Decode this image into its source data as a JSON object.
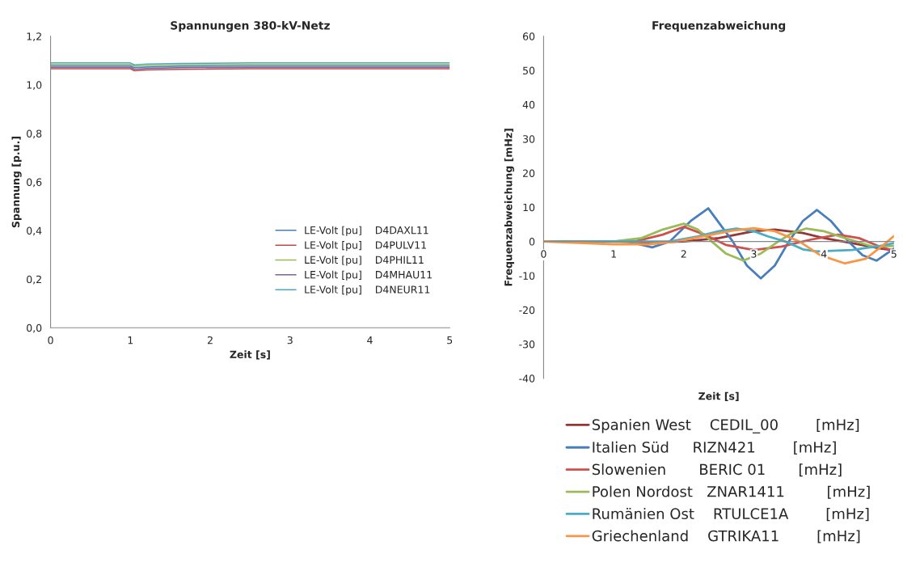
{
  "chart_data": [
    {
      "type": "line",
      "title": "Spannungen 380-kV-Netz",
      "xlabel": "Zeit [s]",
      "ylabel": "Spannung [p.u.]",
      "xlim": [
        0,
        5
      ],
      "xticks": [
        0,
        1,
        2,
        3,
        4,
        5
      ],
      "ylim": [
        0,
        1.2
      ],
      "yticks": [
        {
          "value": 0,
          "label": "0,0"
        },
        {
          "value": 0.2,
          "label": "0,2"
        },
        {
          "value": 0.4,
          "label": "0,4"
        },
        {
          "value": 0.6,
          "label": "0,6"
        },
        {
          "value": 0.8,
          "label": "0,8"
        },
        {
          "value": 1.0,
          "label": "1,0"
        },
        {
          "value": 1.2,
          "label": "1,2"
        }
      ],
      "grid": false,
      "legend": "bottom right",
      "marker": "none",
      "line_style": "solid",
      "x": [
        0,
        1,
        1.05,
        1.2,
        1.6,
        2.5,
        5
      ],
      "series": [
        {
          "name": "LE-Volt [pu]    D4DAXL11",
          "color": "#4a7ebb",
          "values": [
            1.078,
            1.078,
            1.07,
            1.073,
            1.076,
            1.078,
            1.078
          ]
        },
        {
          "name": "LE-Volt [pu]    D4PULV11",
          "color": "#be4b48",
          "values": [
            1.066,
            1.066,
            1.058,
            1.061,
            1.064,
            1.066,
            1.066
          ]
        },
        {
          "name": "LE-Volt [pu]    D4PHIL11",
          "color": "#98b954",
          "values": [
            1.084,
            1.084,
            1.076,
            1.079,
            1.082,
            1.084,
            1.084
          ]
        },
        {
          "name": "LE-Volt [pu]    D4MHAU11",
          "color": "#7d60a0",
          "values": [
            1.072,
            1.072,
            1.064,
            1.067,
            1.07,
            1.072,
            1.072
          ]
        },
        {
          "name": "LE-Volt [pu]    D4NEUR11",
          "color": "#46aac5",
          "values": [
            1.09,
            1.09,
            1.082,
            1.085,
            1.088,
            1.09,
            1.09
          ]
        }
      ]
    },
    {
      "type": "line",
      "title": "Frequenzabweichung",
      "xlabel": "Zeit [s]",
      "ylabel": "Frequenzabweichung [mHz]",
      "xlim": [
        0,
        5
      ],
      "xticks": [
        0,
        1,
        2,
        3,
        4,
        5
      ],
      "ylim": [
        -40,
        60
      ],
      "yticks": [
        -40,
        -30,
        -20,
        -10,
        0,
        10,
        20,
        30,
        40,
        50,
        60
      ],
      "grid": false,
      "legend": "bottom",
      "marker": "none",
      "line_style": "solid",
      "series": [
        {
          "name": "Spanien West    CEDIL_00        [mHz]",
          "color": "#953735",
          "x": [
            0,
            1,
            1.5,
            2,
            2.5,
            3,
            3.3,
            3.7,
            4,
            4.4,
            4.8,
            5
          ],
          "values": [
            0,
            0,
            -0.3,
            0,
            1,
            3,
            3.5,
            2.5,
            1,
            -0.5,
            -2,
            -2.6
          ]
        },
        {
          "name": "Italien Süd     RIZN421        [mHz]",
          "color": "#4a7ebb",
          "x": [
            0,
            1,
            1.2,
            1.55,
            1.8,
            2.1,
            2.35,
            2.7,
            2.9,
            3.1,
            3.3,
            3.5,
            3.7,
            3.9,
            4.1,
            4.35,
            4.55,
            4.75,
            5
          ],
          "values": [
            0,
            0,
            0,
            -1.7,
            0,
            6,
            9.7,
            0,
            -7,
            -10.8,
            -7,
            0,
            6,
            9.2,
            6,
            0,
            -4,
            -5.6,
            -2.1
          ]
        },
        {
          "name": "Slowenien       BERIC 01       [mHz]",
          "color": "#d0504d",
          "x": [
            0,
            1,
            1.3,
            1.7,
            2,
            2.3,
            2.6,
            3,
            3.4,
            3.8,
            4.2,
            4.5,
            4.8,
            5
          ],
          "values": [
            0,
            0,
            0,
            2,
            4.3,
            2,
            -1,
            -2.5,
            -1.5,
            0.5,
            2,
            1,
            -1.5,
            -2.7
          ]
        },
        {
          "name": "Polen Nordost   ZNAR1411         [mHz]",
          "color": "#9bbb59",
          "x": [
            0,
            1,
            1.4,
            1.7,
            2,
            2.2,
            2.4,
            2.6,
            2.85,
            3.1,
            3.35,
            3.55,
            3.75,
            4,
            4.3,
            4.7,
            5
          ],
          "values": [
            0,
            0,
            1,
            3.5,
            5.2,
            3.5,
            0,
            -3.5,
            -5.6,
            -3.5,
            0,
            2.5,
            3.8,
            3,
            1,
            -1.5,
            -1.3
          ]
        },
        {
          "name": "Rumänien Ost    RTULCE1A        [mHz]",
          "color": "#4bacc6",
          "x": [
            0,
            1,
            1.8,
            2.2,
            2.5,
            2.75,
            3,
            3.2,
            3.45,
            3.7,
            3.9,
            4.4,
            4.8,
            5
          ],
          "values": [
            0,
            0,
            0,
            1.5,
            3,
            3.8,
            3,
            1.5,
            0,
            -2.3,
            -2.9,
            -2.5,
            -1.3,
            -0.5
          ]
        },
        {
          "name": "Griechenland    GTRIKA11        [mHz]",
          "color": "#f79646",
          "x": [
            0,
            1,
            1.5,
            1.9,
            2.4,
            2.7,
            3,
            3.3,
            3.65,
            3.95,
            4.3,
            4.6,
            4.85,
            5
          ],
          "values": [
            0,
            -0.8,
            -0.8,
            0,
            2,
            3.2,
            3.9,
            3,
            0,
            -4,
            -6.4,
            -5,
            -1,
            1.6
          ]
        }
      ]
    }
  ]
}
